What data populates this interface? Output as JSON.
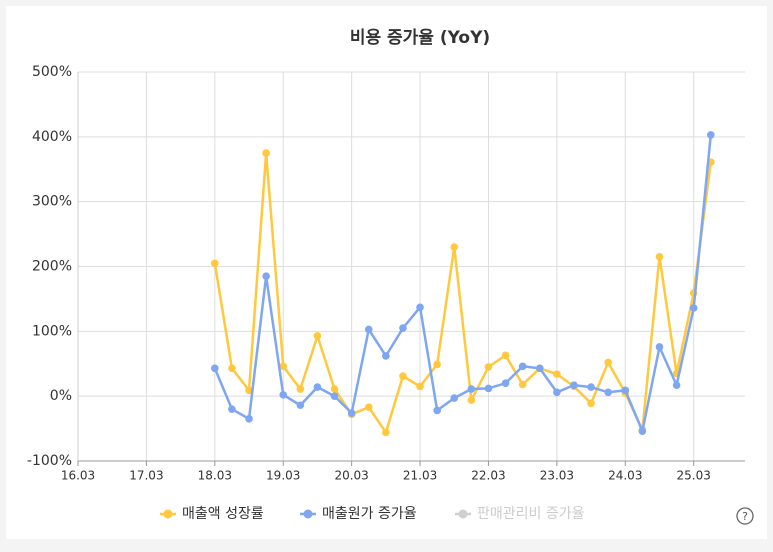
{
  "chart_data": {
    "type": "line",
    "title": "비용 증가율 (YoY)",
    "categories": [
      "16.03",
      null,
      null,
      null,
      "17.03",
      null,
      null,
      null,
      "18.03",
      null,
      null,
      null,
      "19.03",
      null,
      null,
      null,
      "20.03",
      null,
      null,
      null,
      "21.03",
      null,
      null,
      null,
      "22.03",
      null,
      null,
      null,
      "23.03",
      null,
      null,
      null,
      "24.03",
      null,
      null,
      null,
      "25.03",
      null
    ],
    "series": [
      {
        "name": "매출액 성장률",
        "color": "#ffc83d",
        "values": [
          null,
          null,
          null,
          null,
          null,
          null,
          null,
          null,
          205,
          43,
          9,
          375,
          46,
          11,
          93,
          11,
          -28,
          -17,
          -56,
          31,
          15,
          49,
          230,
          -6,
          45,
          63,
          18,
          43,
          34,
          15,
          -11,
          52,
          5,
          -52,
          215,
          35,
          159,
          361
        ]
      },
      {
        "name": "매출원가 증가율",
        "color": "#7ea6f2",
        "values": [
          null,
          null,
          null,
          null,
          null,
          null,
          null,
          null,
          43,
          -20,
          -35,
          185,
          2,
          -14,
          14,
          0,
          -26,
          103,
          62,
          105,
          137,
          -22,
          -3,
          11,
          12,
          20,
          46,
          43,
          6,
          17,
          14,
          6,
          9,
          -54,
          76,
          17,
          136,
          403
        ]
      },
      {
        "name": "판매관리비 증가율",
        "color": "#d0d0d0",
        "hidden": true,
        "values": [
          null,
          null,
          null,
          null,
          null,
          null,
          null,
          null,
          null,
          null,
          null,
          null,
          null,
          null,
          null,
          null,
          null,
          null,
          null,
          null,
          null,
          null,
          null,
          null,
          null,
          null,
          null,
          null,
          null,
          null,
          null,
          null,
          null,
          null,
          null,
          null,
          null,
          null
        ]
      }
    ],
    "ylim": [
      -100,
      500
    ],
    "yticks": [
      {
        "value": -100,
        "label": "-100%"
      },
      {
        "value": 0,
        "label": "0%"
      },
      {
        "value": 100,
        "label": "100%"
      },
      {
        "value": 200,
        "label": "200%"
      },
      {
        "value": 300,
        "label": "300%"
      },
      {
        "value": 400,
        "label": "400%"
      },
      {
        "value": 500,
        "label": "500%"
      }
    ],
    "grid": true,
    "legend": "bottom"
  },
  "help_icon": "?"
}
